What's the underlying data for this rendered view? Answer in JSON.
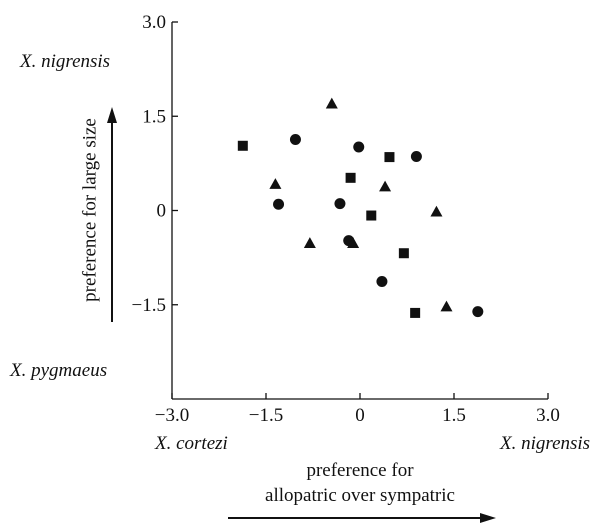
{
  "chart_data": {
    "type": "scatter",
    "xlabel": "preference for allopatric over sympatric",
    "xlabel_lines": [
      "preference for",
      "allopatric over sympatric"
    ],
    "ylabel": "preference for large size",
    "xlim": [
      -3.0,
      3.0
    ],
    "ylim": [
      -3.0,
      3.0
    ],
    "x_ticks": [
      "−3.0",
      "−1.5",
      "0",
      "1.5",
      "3.0"
    ],
    "x_tick_values": [
      -3.0,
      -1.5,
      0,
      1.5,
      3.0
    ],
    "y_ticks": [
      "3.0",
      "1.5",
      "0",
      "−1.5"
    ],
    "y_tick_values": [
      3.0,
      1.5,
      0,
      -1.5
    ],
    "grid": false,
    "legend": "none",
    "annotations": {
      "x_left": "X. cortezi",
      "x_right": "X. nigrensis",
      "y_top": "X. nigrensis",
      "y_bottom": "X. pygmaeus"
    },
    "series": [
      {
        "marker": "square",
        "points": [
          {
            "x": -1.87,
            "y": 1.03
          },
          {
            "x": -0.15,
            "y": 0.52
          },
          {
            "x": 0.47,
            "y": 0.85
          },
          {
            "x": 0.18,
            "y": -0.08
          },
          {
            "x": 0.7,
            "y": -0.68
          },
          {
            "x": 0.88,
            "y": -1.63
          }
        ]
      },
      {
        "marker": "circle",
        "points": [
          {
            "x": -1.03,
            "y": 1.13
          },
          {
            "x": -0.02,
            "y": 1.01
          },
          {
            "x": 0.9,
            "y": 0.86
          },
          {
            "x": -1.3,
            "y": 0.1
          },
          {
            "x": -0.32,
            "y": 0.11
          },
          {
            "x": -0.18,
            "y": -0.48
          },
          {
            "x": 0.35,
            "y": -1.13
          },
          {
            "x": 1.88,
            "y": -1.61
          }
        ]
      },
      {
        "marker": "triangle",
        "points": [
          {
            "x": -0.45,
            "y": 1.7
          },
          {
            "x": -1.35,
            "y": 0.42
          },
          {
            "x": 0.4,
            "y": 0.38
          },
          {
            "x": 1.22,
            "y": -0.02
          },
          {
            "x": -0.8,
            "y": -0.52
          },
          {
            "x": -0.11,
            "y": -0.52
          },
          {
            "x": 1.38,
            "y": -1.53
          }
        ]
      }
    ],
    "colors": {
      "ink": "#111111"
    }
  }
}
